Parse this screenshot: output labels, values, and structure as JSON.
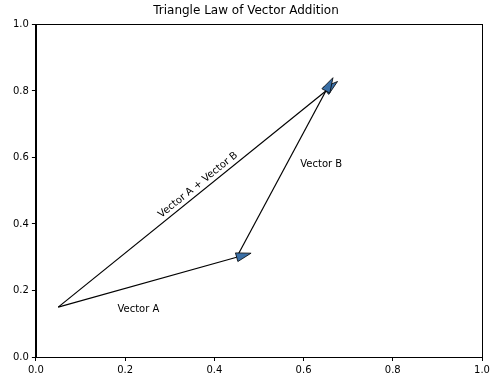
{
  "chart_data": {
    "type": "vector",
    "title": "Triangle Law of Vector Addition",
    "xlim": [
      0,
      1
    ],
    "ylim": [
      0,
      1
    ],
    "xticks": [
      {
        "value": 0,
        "label": "0.0"
      },
      0.2,
      0.4,
      0.6,
      0.8,
      {
        "value": 1,
        "label": "1.0"
      }
    ],
    "yticks": [
      {
        "value": 0,
        "label": "0.0"
      },
      0.2,
      0.4,
      0.6,
      0.8,
      {
        "value": 1,
        "label": "1.0"
      }
    ],
    "grid": false,
    "vectors": [
      {
        "label": "Vector A",
        "start": [
          0.05,
          0.15
        ],
        "end": [
          0.45,
          0.3
        ]
      },
      {
        "label": "Vector B",
        "start": [
          0.45,
          0.3
        ],
        "end": [
          0.65,
          0.8
        ]
      },
      {
        "label": "Vector A + Vector B",
        "start": [
          0.05,
          0.15
        ],
        "end": [
          0.65,
          0.8
        ]
      }
    ]
  }
}
